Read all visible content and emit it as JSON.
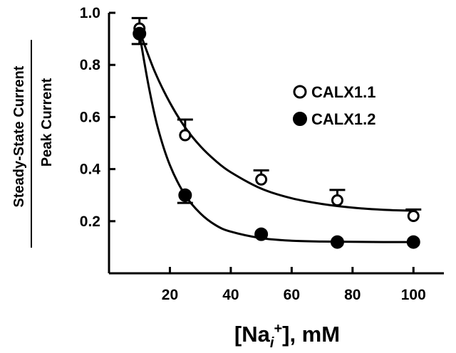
{
  "chart_data": {
    "type": "scatter",
    "ylabel_top": "Steady-State Current",
    "ylabel_bottom": "Peak Current",
    "xlabel_main": "[Na",
    "xlabel_sub": "i",
    "xlabel_sup": "+",
    "xlabel_tail": "], mM",
    "xlim": [
      0,
      110
    ],
    "ylim": [
      0.0,
      1.0
    ],
    "xticks": [
      20,
      40,
      60,
      80,
      100
    ],
    "yticks": [
      0.2,
      0.4,
      0.6,
      0.8,
      1.0
    ],
    "ytick_labels": [
      "0.2",
      "0.4",
      "0.6",
      "0.8",
      "1.0"
    ],
    "grid": false,
    "legend_position": "right",
    "series": [
      {
        "name": "CALX1.1",
        "marker": "open-circle",
        "x": [
          10,
          25,
          50,
          75,
          100
        ],
        "y": [
          0.94,
          0.53,
          0.36,
          0.28,
          0.22
        ],
        "error_up": [
          0.04,
          0.06,
          0.035,
          0.04,
          0.025
        ],
        "fit_curve": {
          "x": [
            10,
            15,
            20,
            25,
            30,
            35,
            40,
            50,
            60,
            70,
            80,
            90,
            100
          ],
          "y": [
            0.93,
            0.775,
            0.655,
            0.56,
            0.488,
            0.432,
            0.388,
            0.325,
            0.288,
            0.266,
            0.252,
            0.244,
            0.24
          ]
        }
      },
      {
        "name": "CALX1.2",
        "marker": "filled-circle",
        "x": [
          10,
          25,
          50,
          75,
          100
        ],
        "y": [
          0.92,
          0.3,
          0.15,
          0.12,
          0.12
        ],
        "error_down": [
          0.04,
          0.03,
          0.0,
          0.0,
          0.0
        ],
        "fit_curve": {
          "x": [
            10,
            13,
            16,
            20,
            25,
            30,
            35,
            40,
            50,
            60,
            70,
            80,
            90,
            100
          ],
          "y": [
            0.92,
            0.72,
            0.56,
            0.415,
            0.3,
            0.23,
            0.185,
            0.16,
            0.135,
            0.125,
            0.122,
            0.121,
            0.12,
            0.12
          ]
        }
      }
    ]
  },
  "colors": {
    "axis": "#000000",
    "marker": "#000000",
    "background": "#ffffff"
  }
}
